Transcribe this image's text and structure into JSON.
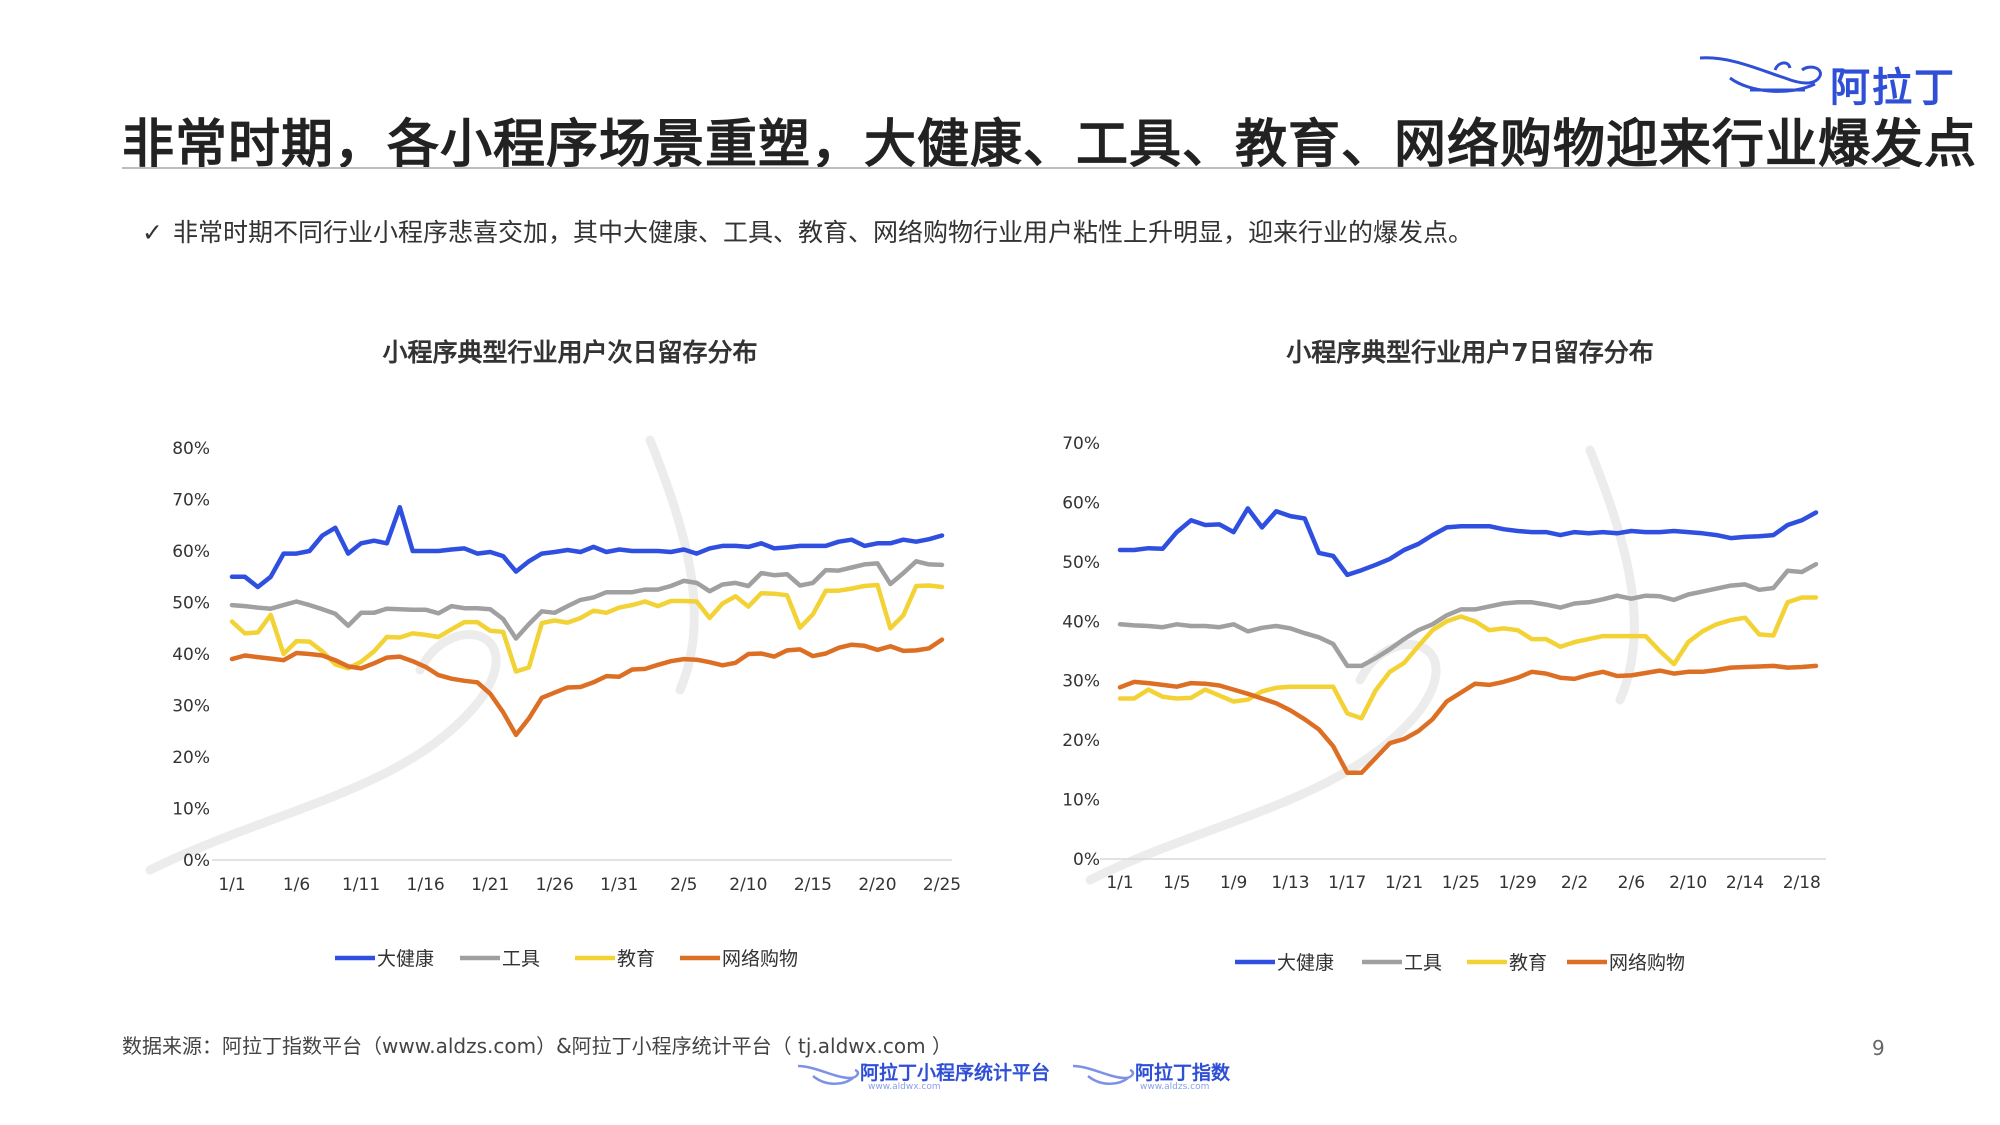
{
  "header": {
    "logo_text": "阿拉丁",
    "title": "非常时期，各小程序场景重塑，大健康、工具、教育、网络购物迎来行业爆发点"
  },
  "bullet": {
    "check": "✓",
    "text": "非常时期不同行业小程序悲喜交加，其中大健康、工具、教育、网络购物行业用户粘性上升明显，迎来行业的爆发点。"
  },
  "colors": {
    "大健康": "#2f4fe0",
    "工具": "#a0a0a0",
    "教育": "#f2d235",
    "网络购物": "#dd6f25",
    "brand": "#2f4fd6"
  },
  "chart_data": [
    {
      "type": "line",
      "title": "小程序典型行业用户次日留存分布",
      "x": [
        "1/1",
        "1/2",
        "1/3",
        "1/4",
        "1/5",
        "1/6",
        "1/7",
        "1/8",
        "1/9",
        "1/10",
        "1/11",
        "1/12",
        "1/13",
        "1/14",
        "1/15",
        "1/16",
        "1/17",
        "1/18",
        "1/19",
        "1/20",
        "1/21",
        "1/22",
        "1/23",
        "1/24",
        "1/25",
        "1/26",
        "1/27",
        "1/28",
        "1/29",
        "1/30",
        "1/31",
        "2/1",
        "2/2",
        "2/3",
        "2/4",
        "2/5",
        "2/6",
        "2/7",
        "2/8",
        "2/9",
        "2/10",
        "2/11",
        "2/12",
        "2/13",
        "2/14",
        "2/15",
        "2/16",
        "2/17",
        "2/18",
        "2/19",
        "2/20",
        "2/21",
        "2/22",
        "2/23",
        "2/24",
        "2/25"
      ],
      "xticks": [
        "1/1",
        "1/6",
        "1/11",
        "1/16",
        "1/21",
        "1/26",
        "1/31",
        "2/5",
        "2/10",
        "2/15",
        "2/20",
        "2/25"
      ],
      "ylim": [
        0,
        80
      ],
      "yticks": [
        "0%",
        "10%",
        "20%",
        "30%",
        "40%",
        "50%",
        "60%",
        "70%",
        "80%"
      ],
      "legend": "bottom",
      "series": [
        {
          "name": "大健康",
          "values": [
            55,
            55,
            53,
            55,
            59.5,
            59.5,
            60,
            63,
            64.5,
            59.5,
            61.5,
            62,
            61.5,
            68.5,
            60,
            60,
            60,
            60.3,
            60.5,
            59.5,
            59.8,
            59,
            56,
            58,
            59.5,
            59.8,
            60.2,
            59.8,
            60.8,
            59.8,
            60.3,
            60,
            60,
            60,
            59.8,
            60.3,
            59.5,
            60.5,
            61,
            61,
            60.8,
            61.5,
            60.5,
            60.7,
            61,
            61,
            61,
            61.8,
            62.2,
            61,
            61.5,
            61.5,
            62.2,
            61.8,
            62.3,
            63
          ]
        },
        {
          "name": "工具",
          "values": [
            49.5,
            49.3,
            49,
            48.8,
            49.5,
            50.2,
            49.5,
            48.7,
            47.8,
            45.5,
            48,
            48,
            48.8,
            48.7,
            48.6,
            48.6,
            47.9,
            49.3,
            48.9,
            48.9,
            48.7,
            46.8,
            43,
            45.8,
            48.3,
            48,
            49.3,
            50.5,
            51,
            52,
            52,
            52,
            52.5,
            52.5,
            53.2,
            54.2,
            53.8,
            52.2,
            53.5,
            53.8,
            53.2,
            55.7,
            55.3,
            55.5,
            53.3,
            53.8,
            56.3,
            56.2,
            56.8,
            57.4,
            57.6,
            53.6,
            55.7,
            58,
            57.4,
            57.3
          ]
        },
        {
          "name": "教育",
          "values": [
            46.3,
            44,
            44.2,
            47.6,
            40,
            42.5,
            42.4,
            40.5,
            38,
            37.2,
            38.5,
            40.5,
            43.3,
            43.2,
            44,
            43.7,
            43.3,
            44.8,
            46.2,
            46.2,
            44.5,
            44.3,
            36.6,
            37.4,
            46,
            46.5,
            46.1,
            47,
            48.4,
            48,
            49,
            49.5,
            50.2,
            49.3,
            50.3,
            50.3,
            50.2,
            47,
            49.8,
            51.2,
            49.2,
            51.8,
            51.7,
            51.4,
            45.1,
            47.7,
            52.3,
            52.3,
            52.7,
            53.2,
            53.4,
            45,
            47.5,
            53.2,
            53.3,
            53
          ]
        },
        {
          "name": "网络购物",
          "values": [
            39,
            39.7,
            39.4,
            39.1,
            38.8,
            40.2,
            40,
            39.7,
            38.8,
            37.6,
            37.2,
            38.2,
            39.3,
            39.5,
            38.6,
            37.5,
            35.9,
            35.2,
            34.8,
            34.5,
            32.3,
            28.7,
            24.3,
            27.5,
            31.5,
            32.5,
            33.5,
            33.6,
            34.5,
            35.7,
            35.6,
            37,
            37.1,
            37.9,
            38.6,
            39,
            38.9,
            38.4,
            37.8,
            38.3,
            40,
            40.1,
            39.5,
            40.7,
            40.9,
            39.6,
            40.1,
            41.2,
            41.8,
            41.6,
            40.8,
            41.5,
            40.6,
            40.7,
            41.1,
            42.8
          ]
        }
      ]
    },
    {
      "type": "line",
      "title": "小程序典型行业用户7日留存分布",
      "x": [
        "1/1",
        "1/2",
        "1/3",
        "1/4",
        "1/5",
        "1/6",
        "1/7",
        "1/8",
        "1/9",
        "1/10",
        "1/11",
        "1/12",
        "1/13",
        "1/14",
        "1/15",
        "1/16",
        "1/17",
        "1/18",
        "1/19",
        "1/20",
        "1/21",
        "1/22",
        "1/23",
        "1/24",
        "1/25",
        "1/26",
        "1/27",
        "1/28",
        "1/29",
        "1/30",
        "1/31",
        "2/1",
        "2/2",
        "2/3",
        "2/4",
        "2/5",
        "2/6",
        "2/7",
        "2/8",
        "2/9",
        "2/10",
        "2/11",
        "2/12",
        "2/13",
        "2/14",
        "2/15",
        "2/16",
        "2/17",
        "2/18",
        "2/19"
      ],
      "xticks": [
        "1/1",
        "1/5",
        "1/9",
        "1/13",
        "1/17",
        "1/21",
        "1/25",
        "1/29",
        "2/2",
        "2/6",
        "2/10",
        "2/14",
        "2/18"
      ],
      "ylim": [
        0,
        70
      ],
      "yticks": [
        "0%",
        "10%",
        "20%",
        "30%",
        "40%",
        "50%",
        "60%",
        "70%"
      ],
      "legend": "bottom",
      "series": [
        {
          "name": "大健康",
          "values": [
            52,
            52,
            52.3,
            52.2,
            55,
            57,
            56.2,
            56.3,
            55,
            59,
            55.8,
            58.5,
            57.7,
            57.3,
            51.5,
            51,
            47.8,
            48.6,
            49.5,
            50.5,
            52,
            53,
            54.5,
            55.8,
            56,
            56,
            56,
            55.5,
            55.2,
            55,
            55,
            54.5,
            55,
            54.8,
            55,
            54.8,
            55.2,
            55,
            55,
            55.2,
            55,
            54.8,
            54.5,
            54,
            54.2,
            54.3,
            54.5,
            56.2,
            57,
            58.3
          ]
        },
        {
          "name": "工具",
          "values": [
            39.5,
            39.3,
            39.2,
            39,
            39.5,
            39.2,
            39.2,
            39,
            39.5,
            38.3,
            38.9,
            39.2,
            38.8,
            38,
            37.3,
            36.2,
            32.5,
            32.5,
            33.8,
            35.3,
            37,
            38.5,
            39.5,
            41,
            42,
            42,
            42.5,
            43,
            43.2,
            43.2,
            42.8,
            42.3,
            43,
            43.2,
            43.7,
            44.3,
            43.8,
            44.3,
            44.2,
            43.6,
            44.5,
            45,
            45.5,
            46,
            46.2,
            45.3,
            45.6,
            48.5,
            48.3,
            49.6
          ]
        },
        {
          "name": "教育",
          "values": [
            27,
            27,
            28.5,
            27.3,
            27,
            27.1,
            28.5,
            27.5,
            26.5,
            26.8,
            28.2,
            28.8,
            29,
            29,
            29,
            29,
            24.5,
            23.7,
            28.4,
            31.5,
            33,
            35.8,
            38.5,
            40,
            40.8,
            40,
            38.5,
            38.8,
            38.5,
            37,
            37,
            35.7,
            36.5,
            37,
            37.5,
            37.5,
            37.5,
            37.5,
            35,
            32.8,
            36.5,
            38.3,
            39.5,
            40.2,
            40.6,
            37.8,
            37.6,
            43.2,
            44,
            44
          ]
        },
        {
          "name": "网络购物",
          "values": [
            28.9,
            29.8,
            29.6,
            29.3,
            29,
            29.6,
            29.5,
            29.2,
            28.5,
            27.8,
            27,
            26.2,
            25,
            23.5,
            21.8,
            19,
            14.5,
            14.5,
            17,
            19.5,
            20.2,
            21.5,
            23.5,
            26.5,
            28,
            29.5,
            29.3,
            29.8,
            30.5,
            31.5,
            31.2,
            30.5,
            30.3,
            31,
            31.5,
            30.8,
            30.9,
            31.3,
            31.7,
            31.2,
            31.5,
            31.5,
            31.8,
            32.2,
            32.3,
            32.4,
            32.5,
            32.2,
            32.3,
            32.5
          ]
        }
      ]
    }
  ],
  "footer": {
    "source": "数据来源：阿拉丁指数平台（www.aldzs.com）&阿拉丁小程序统计平台（ tj.aldwx.com ）",
    "page_number": "9",
    "brand1": "阿拉丁小程序统计平台",
    "brand1_sub": "www.aldwx.com",
    "brand2": "阿拉丁指数",
    "brand2_sub": "www.aldzs.com"
  }
}
